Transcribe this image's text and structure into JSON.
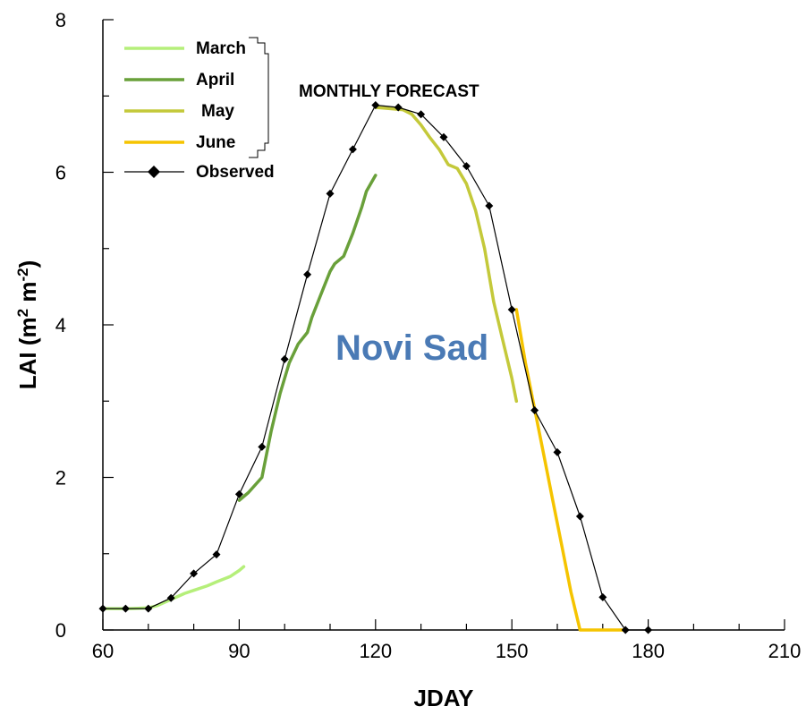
{
  "chart_data": {
    "type": "line",
    "xlabel": "JDAY",
    "ylabel_main": "LAI (m",
    "ylabel_sup1": "2",
    "ylabel_mid": " m",
    "ylabel_sup2": "-2",
    "ylabel_end": ")",
    "xlim": [
      60,
      210
    ],
    "ylim": [
      0,
      8
    ],
    "x_ticks": [
      60,
      90,
      120,
      150,
      180,
      210
    ],
    "y_ticks": [
      0,
      2,
      4,
      6,
      8
    ],
    "x_tick_labels": [
      "60",
      "90",
      "120",
      "150",
      "180",
      "210"
    ],
    "y_tick_labels": [
      "0",
      "2",
      "4",
      "6",
      "8"
    ],
    "annotation": "MONTHLY FORECAST",
    "station_label": "Novi Sad",
    "station_color": "#4a7ab5",
    "legend_position": "top-left",
    "series": [
      {
        "name": "March",
        "color": "#b5ef7a",
        "x": [
          60,
          63,
          66,
          70,
          72,
          75,
          78,
          80,
          83,
          85,
          88,
          90,
          91
        ],
        "y": [
          0.28,
          0.28,
          0.28,
          0.29,
          0.32,
          0.4,
          0.48,
          0.52,
          0.58,
          0.63,
          0.7,
          0.78,
          0.83
        ]
      },
      {
        "name": "April",
        "color": "#69a03a",
        "x": [
          90,
          92,
          95,
          97,
          99,
          101,
          103,
          105,
          106,
          108,
          110,
          111,
          113,
          115,
          117,
          118,
          120
        ],
        "y": [
          1.7,
          1.8,
          2.0,
          2.6,
          3.1,
          3.5,
          3.75,
          3.9,
          4.1,
          4.4,
          4.7,
          4.8,
          4.9,
          5.2,
          5.55,
          5.75,
          5.96
        ]
      },
      {
        "name": "May",
        "color": "#c4c93a",
        "x": [
          120,
          122,
          124,
          126,
          128,
          130,
          132,
          134,
          136,
          138,
          140,
          142,
          144,
          146,
          148,
          150,
          151
        ],
        "y": [
          6.85,
          6.84,
          6.83,
          6.82,
          6.76,
          6.62,
          6.45,
          6.3,
          6.1,
          6.05,
          5.85,
          5.5,
          5.0,
          4.3,
          3.8,
          3.3,
          3.0
        ]
      },
      {
        "name": "June",
        "color": "#f5c400",
        "x": [
          151,
          153,
          155,
          157,
          159,
          161,
          163,
          165,
          166,
          170,
          175
        ],
        "y": [
          4.2,
          3.5,
          2.9,
          2.3,
          1.7,
          1.1,
          0.5,
          0.0,
          0.0,
          0.0,
          0.0
        ]
      },
      {
        "name": "Observed",
        "color": "#000000",
        "x": [
          60,
          65,
          70,
          75,
          80,
          85,
          90,
          95,
          100,
          105,
          110,
          115,
          120,
          125,
          130,
          135,
          140,
          145,
          150,
          155,
          160,
          165,
          170,
          175,
          180
        ],
        "y": [
          0.28,
          0.28,
          0.28,
          0.42,
          0.74,
          0.99,
          1.78,
          2.4,
          3.55,
          4.66,
          5.72,
          6.3,
          6.88,
          6.85,
          6.76,
          6.46,
          6.08,
          5.56,
          4.2,
          2.88,
          2.33,
          1.49,
          0.43,
          0.0,
          0.0
        ]
      }
    ]
  }
}
